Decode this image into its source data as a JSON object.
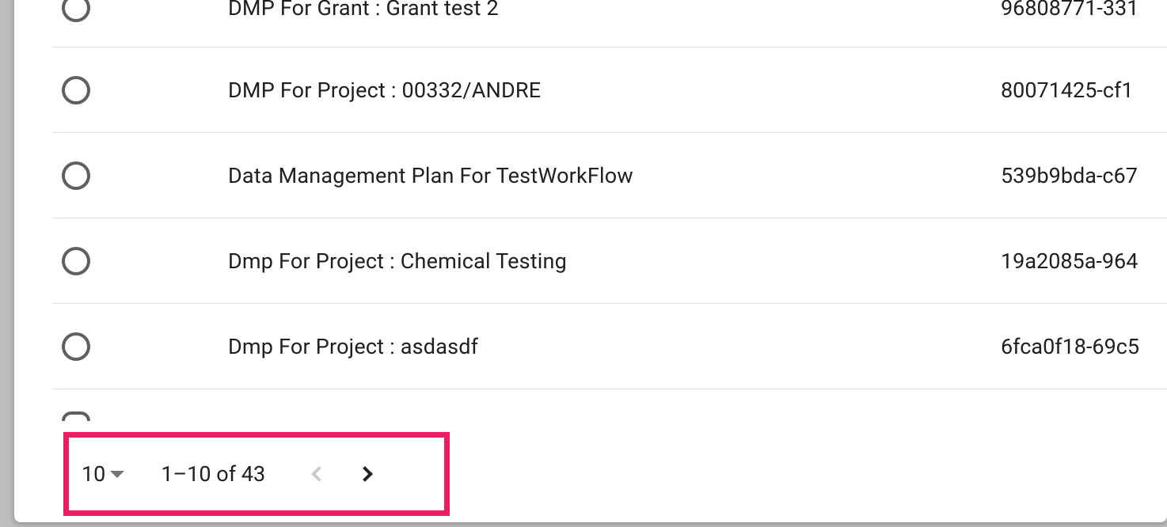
{
  "table": {
    "rows": [
      {
        "name": "DMP For Grant : Grant test 2",
        "id": "96808771-331"
      },
      {
        "name": "DMP For Project : 00332/ANDRE",
        "id": "80071425-cf1"
      },
      {
        "name": "Data Management Plan For TestWorkFlow",
        "id": "539b9bda-c67"
      },
      {
        "name": "Dmp For Project : Chemical Testing",
        "id": "19a2085a-964"
      },
      {
        "name": "Dmp For Project : asdasdf",
        "id": "6fca0f18-69c5"
      }
    ]
  },
  "paginator": {
    "page_size": "10",
    "range_label": "1–10 of 43",
    "highlight_color": "#e91e63",
    "prev_disabled": true,
    "next_disabled": false
  },
  "colors": {
    "background": "#bdbdbd",
    "panel": "#ffffff",
    "divider": "#e0e0e0",
    "text": "#202020",
    "radio_border": "#5f5f5f",
    "dropdown_arrow": "#757575",
    "nav_disabled": "#cccccc"
  }
}
